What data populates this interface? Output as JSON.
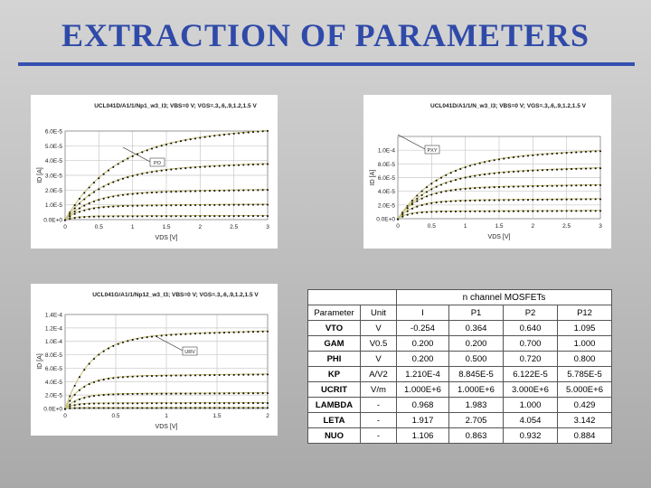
{
  "slide": {
    "title": "EXTRACTION OF PARAMETERS"
  },
  "chart_data": [
    {
      "type": "line",
      "title": "UCL041D/A1/1/Np1_w3_l3; VBS=0 V; VGS=.3,.6,.9,1.2,1.5 V",
      "xlabel": "VDS [V]",
      "ylabel": "ID [A]",
      "xlim": [
        0,
        3
      ],
      "ylim": [
        0,
        6e-05
      ],
      "xticks": [
        "0",
        "0.5",
        "1",
        "1.5",
        "2",
        "2.5",
        "3"
      ],
      "yticks": [
        "0.0E+0",
        "1.0E-5",
        "2.0E-5",
        "3.0E-5",
        "4.0E-5",
        "5.0E-5",
        "6.0E-5"
      ],
      "annotation": "PO",
      "grid": true,
      "series": [
        {
          "sat": 5.55e-05,
          "vk": 1.3
        },
        {
          "sat": 3.45e-05,
          "vk": 1.0
        },
        {
          "sat": 1.85e-05,
          "vk": 0.7
        },
        {
          "sat": 9.5e-06,
          "vk": 0.45
        },
        {
          "sat": 2.5e-06,
          "vk": 0.3
        }
      ]
    },
    {
      "type": "line",
      "title": "UCL041D/A1/1/N_w3_l3; VBS=0 V; VGS=.3,.6,.9,1.2,1.5 V",
      "xlabel": "VDS [V]",
      "ylabel": "ID [A]",
      "xlim": [
        0,
        3
      ],
      "ylim": [
        0,
        0.00012
      ],
      "xticks": [
        "0",
        "0.5",
        "1",
        "1.5",
        "2",
        "2.5",
        "3"
      ],
      "yticks": [
        "0.0E+0",
        "2.0E-5",
        "4.0E-5",
        "6.0E-5",
        "8.0E-5",
        "1.0E-4"
      ],
      "annotation": "PXY",
      "grid": true,
      "series": [
        {
          "sat": 9.05e-05,
          "vk": 1.1
        },
        {
          "sat": 6.75e-05,
          "vk": 0.9
        },
        {
          "sat": 4.5e-05,
          "vk": 0.6
        },
        {
          "sat": 2.65e-05,
          "vk": 0.45
        },
        {
          "sat": 1.1e-05,
          "vk": 0.3
        }
      ]
    },
    {
      "type": "line",
      "title": "UCL041G/A1/1/Np12_w3_l3; VBS=0 V; VGS=.3,.6,.9,1.2,1.5 V",
      "xlabel": "VDS [V]",
      "ylabel": "ID [A]",
      "xlim": [
        0,
        2
      ],
      "ylim": [
        0,
        0.00014
      ],
      "xticks": [
        "0",
        "0.5",
        "1",
        "1.5",
        "2"
      ],
      "yticks": [
        "0.0E+0",
        "2.0E-5",
        "4.0E-5",
        "6.0E-5",
        "8.0E-5",
        "1.0E-4",
        "1.2E-4",
        "1.4E-4"
      ],
      "annotation": "URV",
      "grid": true,
      "series": [
        {
          "sat": 0.000108,
          "vk": 0.45
        },
        {
          "sat": 4.8e-05,
          "vk": 0.3
        },
        {
          "sat": 2.2e-05,
          "vk": 0.25
        },
        {
          "sat": 8.2e-06,
          "vk": 0.15
        },
        {
          "sat": 1.5e-06,
          "vk": 0.1
        }
      ]
    }
  ],
  "param_table": {
    "group_header": "n channel MOSFETs",
    "headers": [
      "Parameter",
      "Unit",
      "I",
      "P1",
      "P2",
      "P12"
    ],
    "rows": [
      [
        "VTO",
        "V",
        "-0.254",
        "0.364",
        "0.640",
        "1.095"
      ],
      [
        "GAM",
        "V0.5",
        "0.200",
        "0.200",
        "0.700",
        "1.000"
      ],
      [
        "PHI",
        "V",
        "0.200",
        "0.500",
        "0.720",
        "0.800"
      ],
      [
        "KP",
        "A/V2",
        "1.210E-4",
        "8.845E-5",
        "6.122E-5",
        "5.785E-5"
      ],
      [
        "UCRIT",
        "V/m",
        "1.000E+6",
        "1.000E+6",
        "3.000E+6",
        "5.000E+6"
      ],
      [
        "LAMBDA",
        "-",
        "0.968",
        "1.983",
        "1.000",
        "0.429"
      ],
      [
        "LETA",
        "-",
        "1.917",
        "2.705",
        "4.054",
        "3.142"
      ],
      [
        "NUO",
        "-",
        "1.106",
        "0.863",
        "0.932",
        "0.884"
      ]
    ]
  }
}
